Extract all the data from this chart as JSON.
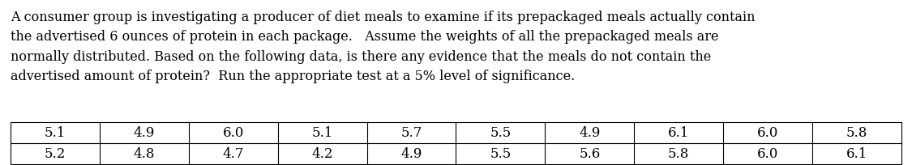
{
  "lines": [
    "A consumer group is investigating a producer of diet meals to examine if its prepackaged meals actually contain",
    "the advertised 6 ounces of protein in each package.   Assume the weights of all the prepackaged meals are",
    "normally distributed. Based on the following data, is there any evidence that the meals do not contain the",
    "advertised amount of protein?  Run the appropriate test at a 5% level of significance."
  ],
  "row1": [
    "5.1",
    "4.9",
    "6.0",
    "5.1",
    "5.7",
    "5.5",
    "4.9",
    "6.1",
    "6.0",
    "5.8"
  ],
  "row2": [
    "5.2",
    "4.8",
    "4.7",
    "4.2",
    "4.9",
    "5.5",
    "5.6",
    "5.8",
    "6.0",
    "6.1"
  ],
  "background_color": "#ffffff",
  "text_color": "#000000",
  "font_size_para": 11.5,
  "font_size_table": 12.0,
  "fig_width": 11.25,
  "fig_height": 2.05
}
